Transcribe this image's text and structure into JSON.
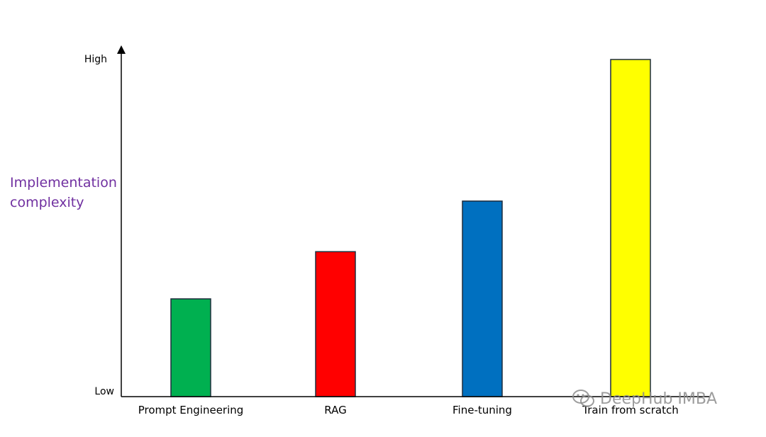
{
  "chart_data": {
    "type": "bar",
    "categories": [
      "Prompt Engineering",
      "RAG",
      "Fine-tuning",
      "Train from scratch"
    ],
    "values": [
      29,
      43,
      58,
      100
    ],
    "colors": [
      "#00b050",
      "#ff0000",
      "#0070c0",
      "#ffff00"
    ],
    "title": "",
    "ylabel_lines": [
      "Implementation",
      "complexity"
    ],
    "ylabel_color": "#7030a0",
    "y_tick_labels": {
      "low": "Low",
      "high": "High"
    },
    "ylim": [
      0,
      100
    ],
    "grid": false,
    "legend": "none"
  },
  "watermark": {
    "text": "DeepHub IMBA",
    "icon": "wechat-icon"
  }
}
